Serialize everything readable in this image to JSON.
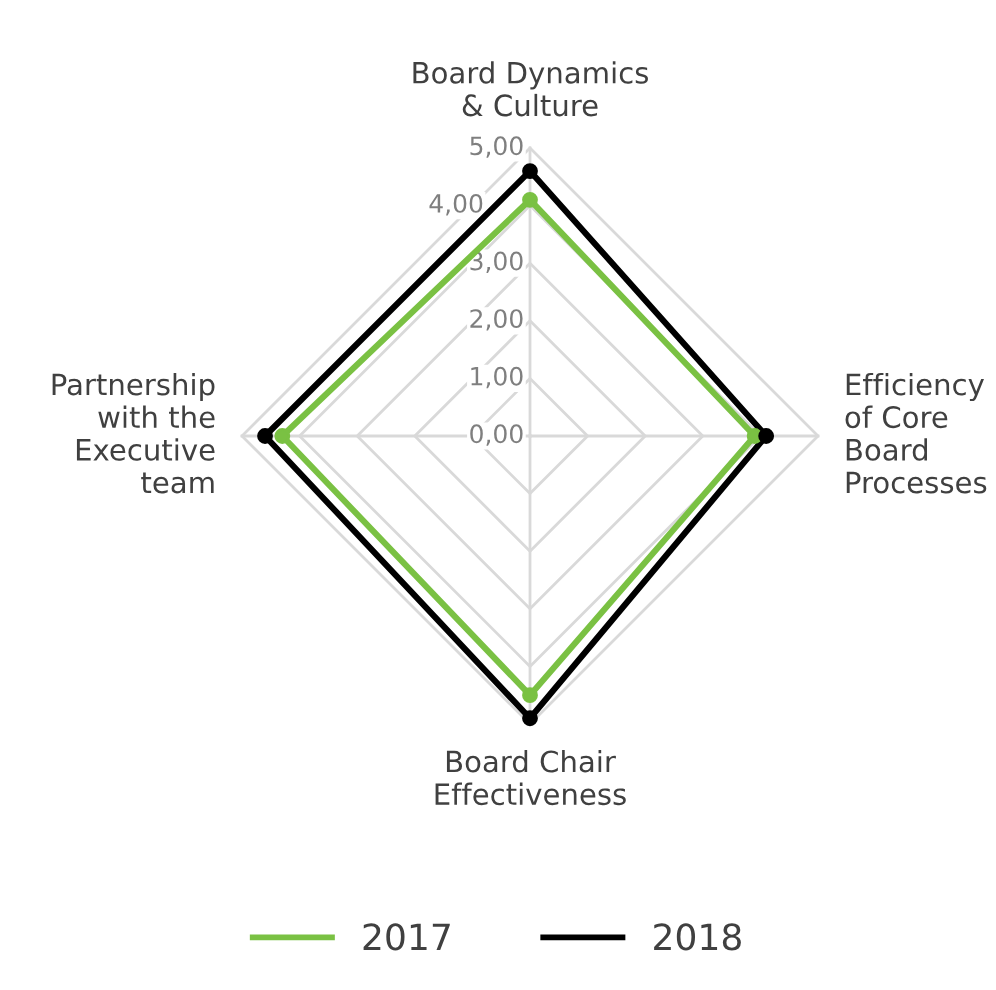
{
  "chart_data": {
    "type": "radar",
    "categories": [
      "Board Dynamics\n& Culture",
      "Efficiency\nof Core\nBoard\nProcesses",
      "Board Chair\nEffectiveness",
      "Partnership\nwith the\nExecutive\nteam"
    ],
    "series": [
      {
        "name": "2017",
        "color": "#7ac143",
        "values": [
          4.1,
          3.9,
          4.5,
          4.3
        ]
      },
      {
        "name": "2018",
        "color": "#000000",
        "values": [
          4.6,
          4.1,
          4.9,
          4.6
        ]
      }
    ],
    "ylim": [
      0,
      5
    ],
    "yticks": [
      {
        "value": 0,
        "label": "0,00"
      },
      {
        "value": 1,
        "label": "1,00"
      },
      {
        "value": 2,
        "label": "2,00"
      },
      {
        "value": 3,
        "label": "3,00"
      },
      {
        "value": 4,
        "label": "4,00"
      },
      {
        "value": 5,
        "label": "5,00"
      }
    ],
    "grid": true,
    "marker": "circle",
    "line_style": "solid",
    "legend": "bottom"
  }
}
